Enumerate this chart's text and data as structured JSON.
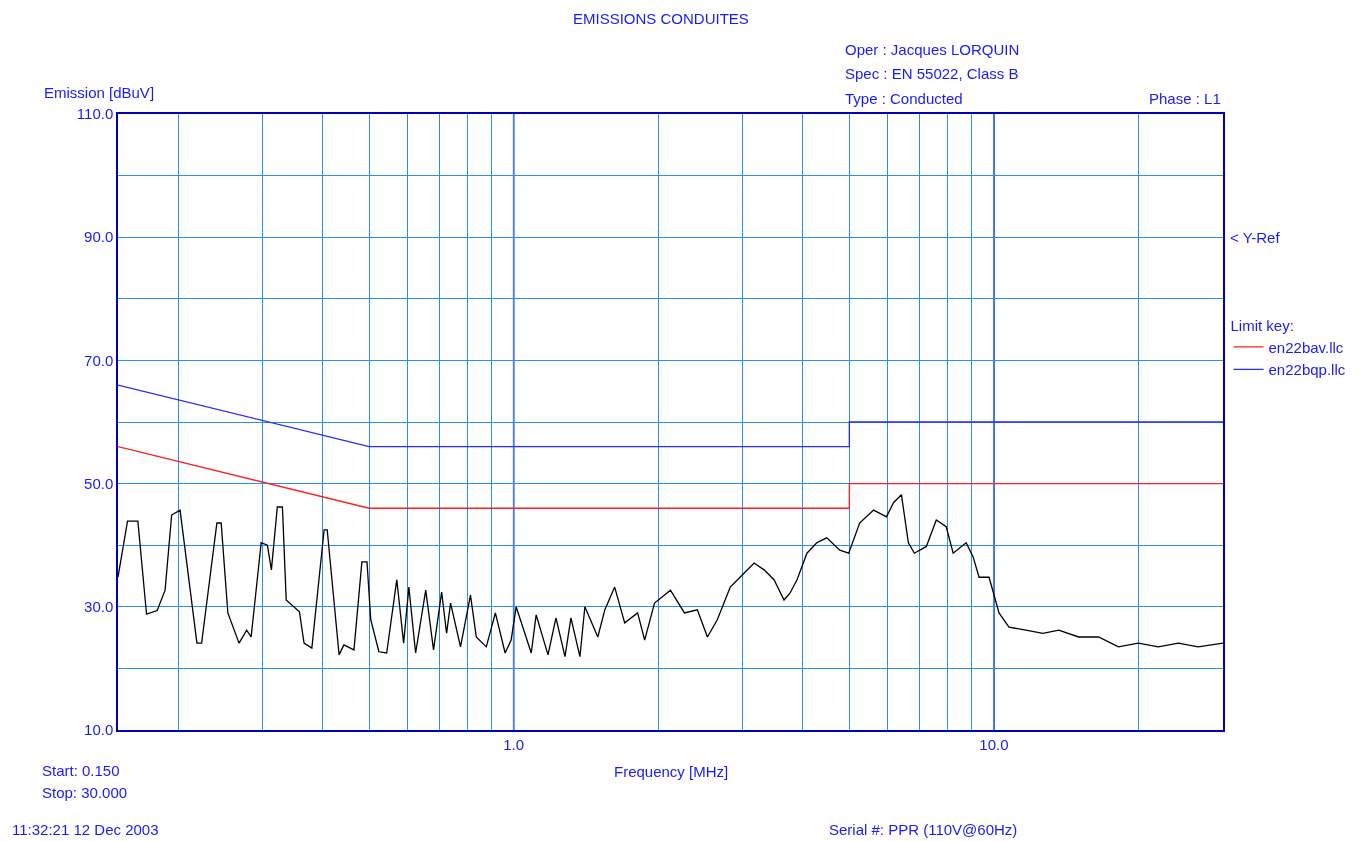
{
  "chart_data": {
    "type": "line",
    "title": "EMISSIONS CONDUITES",
    "xlabel": "Frequency [MHz]",
    "ylabel": "Emission [dBuV]",
    "legend_title": "Limit key:",
    "log": "x",
    "grid": true,
    "legend": "right",
    "marker": "none",
    "xlim": [
      0.15,
      30
    ],
    "xticks": [
      {
        "value": 0.2,
        "label": null
      },
      {
        "value": 0.3,
        "label": null
      },
      {
        "value": 0.4,
        "label": null
      },
      {
        "value": 0.5,
        "label": null
      },
      {
        "value": 0.6,
        "label": null
      },
      {
        "value": 0.7,
        "label": null
      },
      {
        "value": 0.8,
        "label": null
      },
      {
        "value": 0.9,
        "label": null
      },
      {
        "value": 1,
        "label": "1.0"
      },
      {
        "value": 2,
        "label": null
      },
      {
        "value": 3,
        "label": null
      },
      {
        "value": 4,
        "label": null
      },
      {
        "value": 5,
        "label": null
      },
      {
        "value": 6,
        "label": null
      },
      {
        "value": 7,
        "label": null
      },
      {
        "value": 8,
        "label": null
      },
      {
        "value": 9,
        "label": null
      },
      {
        "value": 10,
        "label": "10.0"
      },
      {
        "value": 20,
        "label": null
      }
    ],
    "ylim": [
      10,
      110
    ],
    "yticks": [
      {
        "value": 10,
        "label": "10.0"
      },
      {
        "value": 20,
        "label": null
      },
      {
        "value": 30,
        "label": "30.0"
      },
      {
        "value": 40,
        "label": null
      },
      {
        "value": 50,
        "label": "50.0"
      },
      {
        "value": 60,
        "label": null
      },
      {
        "value": 70,
        "label": "70.0"
      },
      {
        "value": 80,
        "label": null
      },
      {
        "value": 90,
        "label": "90.0"
      },
      {
        "value": 100,
        "label": null
      },
      {
        "value": 110,
        "label": "110.0"
      }
    ],
    "series": [
      {
        "name": "en22bav.llc",
        "color": "#ff2020",
        "x": [
          0.15,
          0.5,
          5,
          5,
          30
        ],
        "values": [
          56,
          46,
          46,
          50,
          50
        ]
      },
      {
        "name": "en22bqp.llc",
        "color": "#2a2aff",
        "x": [
          0.15,
          0.5,
          5,
          5,
          30
        ],
        "values": [
          66,
          56,
          56,
          60,
          60
        ]
      },
      {
        "color": "#000000",
        "x": [
          0.15,
          0.157,
          0.165,
          0.172,
          0.181,
          0.188,
          0.194,
          0.202,
          0.219,
          0.224,
          0.241,
          0.246,
          0.254,
          0.268,
          0.278,
          0.284,
          0.298,
          0.307,
          0.313,
          0.322,
          0.33,
          0.336,
          0.358,
          0.366,
          0.38,
          0.403,
          0.409,
          0.433,
          0.443,
          0.465,
          0.483,
          0.495,
          0.504,
          0.524,
          0.544,
          0.571,
          0.59,
          0.605,
          0.625,
          0.656,
          0.681,
          0.708,
          0.725,
          0.739,
          0.775,
          0.813,
          0.836,
          0.877,
          0.916,
          0.96,
          0.988,
          1.012,
          1.088,
          1.114,
          1.179,
          1.225,
          1.279,
          1.316,
          1.374,
          1.407,
          1.497,
          1.548,
          1.623,
          1.703,
          1.812,
          1.874,
          1.965,
          2.121,
          2.268,
          2.413,
          2.532,
          2.655,
          2.825,
          3.021,
          3.168,
          3.323,
          3.485,
          3.656,
          3.761,
          3.891,
          4.08,
          4.278,
          4.488,
          4.776,
          4.986,
          5.254,
          5.616,
          5.976,
          6.179,
          6.419,
          6.637,
          6.831,
          7.234,
          7.587,
          7.957,
          8.227,
          8.755,
          9.052,
          9.315,
          9.771,
          10.25,
          10.75,
          11.66,
          12.65,
          13.65,
          15.01,
          16.52,
          18.17,
          19.99,
          22.0,
          24.21,
          26.63,
          30
        ],
        "values": [
          34.8,
          43.9,
          43.9,
          28.8,
          29.4,
          32.7,
          44.9,
          45.7,
          24.1,
          24.1,
          43.6,
          43.6,
          29.0,
          24.1,
          26.2,
          25.1,
          40.4,
          40.0,
          36.0,
          46.2,
          46.2,
          31.1,
          29.2,
          24.1,
          23.3,
          42.5,
          42.5,
          22.2,
          23.8,
          23.0,
          37.3,
          37.3,
          27.9,
          22.7,
          22.5,
          34.4,
          24.1,
          33.2,
          22.5,
          32.7,
          23.0,
          32.4,
          25.7,
          30.6,
          23.5,
          31.9,
          25.1,
          23.5,
          29.0,
          22.5,
          24.6,
          30.0,
          22.5,
          28.7,
          22.2,
          28.2,
          21.9,
          28.2,
          21.9,
          30.0,
          25.1,
          29.5,
          33.2,
          27.4,
          29.0,
          24.6,
          30.6,
          32.7,
          29.0,
          29.5,
          25.1,
          27.9,
          33.2,
          35.5,
          37.1,
          36.0,
          34.4,
          31.1,
          32.2,
          34.4,
          38.7,
          40.4,
          41.2,
          39.2,
          38.7,
          43.6,
          45.7,
          44.6,
          46.9,
          48.2,
          40.4,
          38.7,
          39.8,
          44.1,
          43.0,
          38.7,
          40.4,
          38.1,
          34.8,
          34.8,
          29.0,
          26.7,
          26.2,
          25.7,
          26.2,
          25.1,
          25.1,
          23.5,
          24.1,
          23.5,
          24.1,
          23.5,
          24.1
        ]
      }
    ],
    "annotations": [
      "< Y-Ref",
      "Oper : Jacques LORQUIN",
      "Spec : EN 55022, Class B",
      "Type : Conducted",
      "Phase : L1",
      "Start: 0.150",
      "Stop: 30.000",
      "11:32:21 12 Dec 2003",
      "Serial #: PPR (110V@60Hz)"
    ]
  }
}
